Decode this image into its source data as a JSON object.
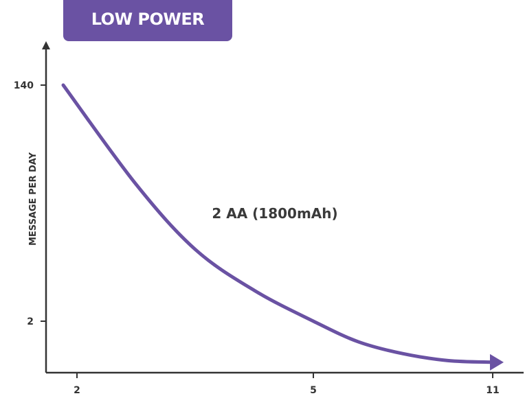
{
  "header": {
    "badge": "LOW POWER"
  },
  "colors": {
    "accent": "#6a52a3",
    "axis": "#333333",
    "text": "#333333"
  },
  "chart_data": {
    "type": "line",
    "title": "LOW POWER",
    "xlabel": "",
    "ylabel": "MESSAGE PER DAY",
    "x_ticks": [
      "2",
      "5",
      "11"
    ],
    "y_ticks": [
      "140",
      "2"
    ],
    "series": [
      {
        "name": "2 AA (1800mAh)",
        "x_tick_index": [
          0,
          0.25,
          0.5,
          0.75,
          1,
          1.25,
          1.5,
          1.75,
          2
        ],
        "y_values": [
          140,
          82,
          44,
          20,
          2,
          -10,
          -17,
          -21,
          -22
        ]
      }
    ],
    "annotations": [
      "2 AA (1800mAh)"
    ],
    "grid": false,
    "legend": "none"
  }
}
